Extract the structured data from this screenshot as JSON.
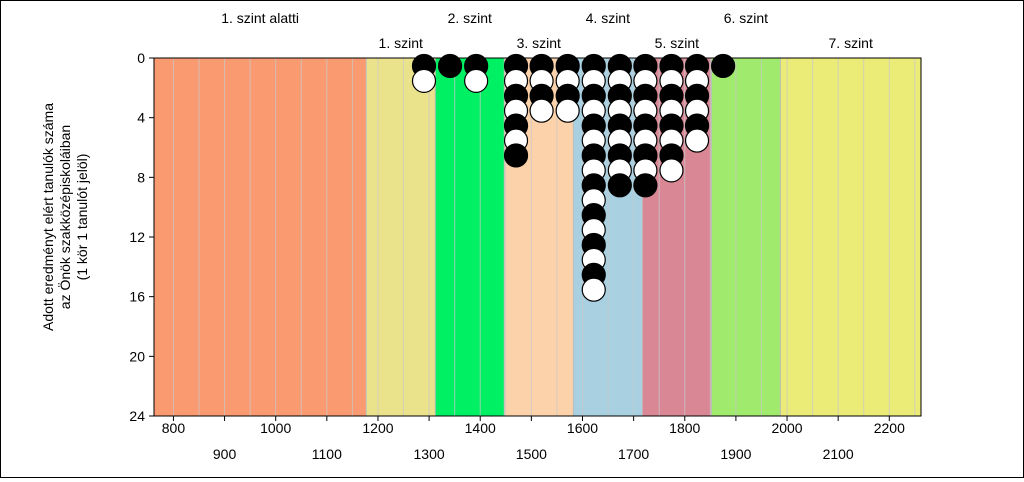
{
  "chart_data": {
    "type": "scatter",
    "title": "",
    "xlabel": "",
    "ylabel_lines": [
      "Adott eredményt elért tanulók száma",
      "az Önök szakközépiskoláiban",
      "(1 kör 1 tanulót jelöl)"
    ],
    "xlim": [
      762,
      2262
    ],
    "ylim": [
      0,
      24
    ],
    "y_inverted": true,
    "yticks": [
      0,
      4,
      8,
      12,
      16,
      20,
      24
    ],
    "xticks_top_row": [
      800,
      1000,
      1200,
      1400,
      1600,
      1800,
      2000,
      2200
    ],
    "xticks_bottom_row": [
      900,
      1100,
      1300,
      1500,
      1700,
      1900,
      2100
    ],
    "minor_gridline_step": 50,
    "levels": [
      {
        "name": "1. szint alatti",
        "from": 762,
        "to": 1177,
        "color": "#fa9a70",
        "label_row": "upper"
      },
      {
        "name": "1. szint",
        "from": 1177,
        "to": 1312,
        "color": "#ebe28c",
        "label_row": "lower"
      },
      {
        "name": "2. szint",
        "from": 1312,
        "to": 1447,
        "color": "#00f064",
        "label_row": "upper"
      },
      {
        "name": "3. szint",
        "from": 1447,
        "to": 1582,
        "color": "#fcd2aa",
        "label_row": "lower"
      },
      {
        "name": "4. szint",
        "from": 1582,
        "to": 1717,
        "color": "#a8d0e1",
        "label_row": "upper"
      },
      {
        "name": "5. szint",
        "from": 1717,
        "to": 1852,
        "color": "#d98795",
        "label_row": "lower"
      },
      {
        "name": "6. szint",
        "from": 1852,
        "to": 1987,
        "color": "#a0eb6e",
        "label_row": "upper"
      },
      {
        "name": "7. szint",
        "from": 1987,
        "to": 2262,
        "color": "#ebeb78",
        "label_row": "lower"
      }
    ],
    "columns": [
      {
        "x": 1290,
        "count": 2
      },
      {
        "x": 1341,
        "count": 1
      },
      {
        "x": 1392,
        "count": 2
      },
      {
        "x": 1470,
        "count": 7
      },
      {
        "x": 1520,
        "count": 4
      },
      {
        "x": 1571,
        "count": 4
      },
      {
        "x": 1622,
        "count": 16
      },
      {
        "x": 1673,
        "count": 9
      },
      {
        "x": 1723,
        "count": 9
      },
      {
        "x": 1774,
        "count": 8
      },
      {
        "x": 1824,
        "count": 6
      },
      {
        "x": 1875,
        "count": 1
      }
    ],
    "marker_colors": [
      "#000000",
      "#ffffff"
    ],
    "marker_outline": "#000000",
    "gridline_color": "#c8c8c8",
    "band_border_color": "#bdbdbd"
  }
}
